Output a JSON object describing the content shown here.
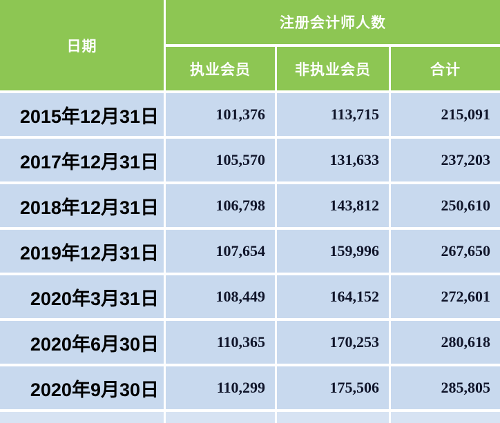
{
  "table": {
    "header": {
      "date_col": "日期",
      "group": "注册会计师人数",
      "sub_cols": [
        "执业会员",
        "非执业会员",
        "合计"
      ]
    },
    "rows": [
      {
        "date": "2015年12月31日",
        "practicing": "101,376",
        "non_practicing": "113,715",
        "total": "215,091"
      },
      {
        "date": "2017年12月31日",
        "practicing": "105,570",
        "non_practicing": "131,633",
        "total": "237,203"
      },
      {
        "date": "2018年12月31日",
        "practicing": "106,798",
        "non_practicing": "143,812",
        "total": "250,610"
      },
      {
        "date": "2019年12月31日",
        "practicing": "107,654",
        "non_practicing": "159,996",
        "total": "267,650"
      },
      {
        "date": "2020年3月31日",
        "practicing": "108,449",
        "non_practicing": "164,152",
        "total": "272,601"
      },
      {
        "date": "2020年6月30日",
        "practicing": "110,365",
        "non_practicing": "170,253",
        "total": "280,618"
      },
      {
        "date": "2020年9月30日",
        "practicing": "110,299",
        "non_practicing": "175,506",
        "total": "285,805"
      }
    ],
    "colors": {
      "header_green": "#8DC653",
      "row_blue": "#C8D9EE",
      "partial_row_blue": "#D7E3F3",
      "header_text": "#FFFFFF",
      "date_text": "#000000",
      "number_text": "#10152A"
    }
  },
  "chart_data": {
    "type": "table",
    "title": "注册会计师人数",
    "columns": [
      "日期",
      "执业会员",
      "非执业会员",
      "合计"
    ],
    "column_group": {
      "label": "注册会计师人数",
      "spans": [
        "执业会员",
        "非执业会员",
        "合计"
      ]
    },
    "rows": [
      [
        "2015年12月31日",
        101376,
        113715,
        215091
      ],
      [
        "2017年12月31日",
        105570,
        131633,
        237203
      ],
      [
        "2018年12月31日",
        106798,
        143812,
        250610
      ],
      [
        "2019年12月31日",
        107654,
        159996,
        267650
      ],
      [
        "2020年3月31日",
        108449,
        164152,
        272601
      ],
      [
        "2020年6月30日",
        110365,
        170253,
        280618
      ],
      [
        "2020年9月30日",
        110299,
        175506,
        285805
      ]
    ]
  }
}
